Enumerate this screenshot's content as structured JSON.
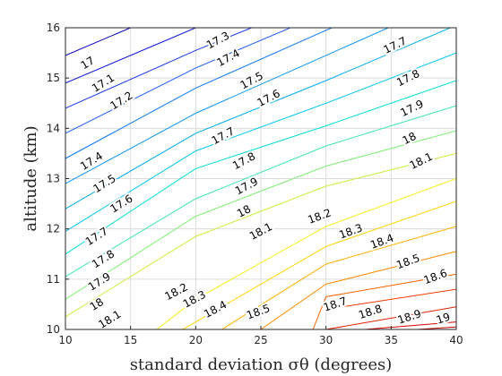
{
  "chart_data": {
    "type": "contour",
    "xlabel": "standard deviation σθ (degrees)",
    "ylabel": "altitude (km)",
    "xlim": [
      10,
      40
    ],
    "ylim": [
      10,
      16
    ],
    "x_ticks": [
      "10",
      "15",
      "20",
      "25",
      "30",
      "35",
      "40"
    ],
    "y_ticks": [
      "10",
      "11",
      "12",
      "13",
      "14",
      "15",
      "16"
    ],
    "grid": true,
    "colormap": "jet",
    "contour_levels": [
      {
        "level": "17",
        "color": "#0000b8",
        "points": [
          [
            10,
            15.45
          ],
          [
            20,
            16.55
          ]
        ]
      },
      {
        "level": "17.1",
        "color": "#0a14d6",
        "points": [
          [
            10,
            14.9
          ],
          [
            20,
            16.0
          ],
          [
            30,
            17.0
          ]
        ]
      },
      {
        "level": "17.2",
        "color": "#1a3aec",
        "points": [
          [
            10,
            14.4
          ],
          [
            20,
            15.55
          ],
          [
            30,
            16.6
          ]
        ]
      },
      {
        "level": "17.3",
        "color": "#1e5ef5",
        "points": [
          [
            10,
            13.9
          ],
          [
            20,
            15.2
          ],
          [
            30,
            16.3
          ]
        ]
      },
      {
        "level": "17.4",
        "color": "#0c78f0",
        "points": [
          [
            10,
            13.4
          ],
          [
            20,
            14.8
          ],
          [
            30,
            15.95
          ],
          [
            40,
            17.0
          ]
        ]
      },
      {
        "level": "17.5",
        "color": "#0c94ee",
        "points": [
          [
            10,
            12.9
          ],
          [
            20,
            14.3
          ],
          [
            30,
            15.45
          ],
          [
            40,
            16.6
          ]
        ]
      },
      {
        "level": "17.6",
        "color": "#00aaf0",
        "points": [
          [
            10,
            12.4
          ],
          [
            20,
            13.9
          ],
          [
            30,
            14.95
          ],
          [
            40,
            16.05
          ]
        ]
      },
      {
        "level": "17.7",
        "color": "#00c4f0",
        "points": [
          [
            10,
            11.95
          ],
          [
            20,
            13.55
          ],
          [
            30,
            14.5
          ],
          [
            40,
            15.5
          ]
        ]
      },
      {
        "level": "17.8",
        "color": "#00dcd8",
        "points": [
          [
            10,
            11.5
          ],
          [
            20,
            13.2
          ],
          [
            30,
            14.05
          ],
          [
            40,
            14.95
          ]
        ]
      },
      {
        "level": "17.9",
        "color": "#3ce6a8",
        "points": [
          [
            10,
            11.05
          ],
          [
            20,
            12.6
          ],
          [
            30,
            13.65
          ],
          [
            40,
            14.45
          ]
        ]
      },
      {
        "level": "18",
        "color": "#7ef072",
        "points": [
          [
            10,
            10.6
          ],
          [
            20,
            12.25
          ],
          [
            30,
            13.25
          ],
          [
            40,
            13.95
          ]
        ]
      },
      {
        "level": "18.1",
        "color": "#c8f03c",
        "points": [
          [
            10,
            10.25
          ],
          [
            20,
            11.85
          ],
          [
            30,
            12.85
          ],
          [
            40,
            13.5
          ]
        ]
      },
      {
        "level": "18.2",
        "color": "#f4f41c",
        "points": [
          [
            17,
            10.0
          ],
          [
            20,
            10.6
          ],
          [
            30,
            12.05
          ],
          [
            40,
            13.0
          ]
        ]
      },
      {
        "level": "18.3",
        "color": "#ffd400",
        "points": [
          [
            19,
            10.0
          ],
          [
            30,
            11.65
          ],
          [
            40,
            12.55
          ]
        ]
      },
      {
        "level": "18.4",
        "color": "#ffb000",
        "points": [
          [
            22,
            10.0
          ],
          [
            30,
            11.3
          ],
          [
            40,
            12.05
          ]
        ]
      },
      {
        "level": "18.5",
        "color": "#ff8c00",
        "points": [
          [
            25,
            10.0
          ],
          [
            30,
            10.9
          ],
          [
            40,
            11.55
          ]
        ]
      },
      {
        "level": "18.6",
        "color": "#f86200",
        "points": [
          [
            29,
            10.0
          ],
          [
            30,
            10.65
          ],
          [
            40,
            11.1
          ]
        ]
      },
      {
        "level": "18.7",
        "color": "#f23a00",
        "points": [
          [
            30,
            10.4
          ],
          [
            40,
            10.8
          ]
        ]
      },
      {
        "level": "18.8",
        "color": "#e41e00",
        "points": [
          [
            30,
            10.0
          ],
          [
            40,
            10.45
          ]
        ]
      },
      {
        "level": "18.9",
        "color": "#d40000",
        "points": [
          [
            33,
            10.0
          ],
          [
            40,
            10.15
          ]
        ]
      },
      {
        "level": "19",
        "color": "#c00000",
        "points": [
          [
            37,
            10.0
          ],
          [
            40,
            10.05
          ]
        ]
      }
    ],
    "contour_labels": [
      {
        "text": "17",
        "x": 11.7,
        "y": 15.3,
        "angle": -32
      },
      {
        "text": "17.1",
        "x": 12.9,
        "y": 14.9,
        "angle": -32
      },
      {
        "text": "17.2",
        "x": 14.3,
        "y": 14.55,
        "angle": -32
      },
      {
        "text": "17.3",
        "x": 21.7,
        "y": 15.75,
        "angle": -28
      },
      {
        "text": "17.4",
        "x": 22.5,
        "y": 15.4,
        "angle": -28
      },
      {
        "text": "17.5",
        "x": 24.3,
        "y": 14.95,
        "angle": -28
      },
      {
        "text": "17.6",
        "x": 25.6,
        "y": 14.6,
        "angle": -28
      },
      {
        "text": "17.7",
        "x": 35.3,
        "y": 15.65,
        "angle": -26
      },
      {
        "text": "17.8",
        "x": 36.3,
        "y": 15.0,
        "angle": -26
      },
      {
        "text": "17.9",
        "x": 36.6,
        "y": 14.4,
        "angle": -26
      },
      {
        "text": "18",
        "x": 36.4,
        "y": 13.8,
        "angle": -26
      },
      {
        "text": "18.1",
        "x": 37.3,
        "y": 13.35,
        "angle": -26
      },
      {
        "text": "17.7",
        "x": 22.1,
        "y": 13.85,
        "angle": -28
      },
      {
        "text": "17.8",
        "x": 23.7,
        "y": 13.35,
        "angle": -28
      },
      {
        "text": "17.9",
        "x": 23.9,
        "y": 12.85,
        "angle": -28
      },
      {
        "text": "18",
        "x": 23.7,
        "y": 12.35,
        "angle": -28
      },
      {
        "text": "18.1",
        "x": 25.0,
        "y": 11.95,
        "angle": -28
      },
      {
        "text": "17.4",
        "x": 12.0,
        "y": 13.35,
        "angle": -32
      },
      {
        "text": "17.5",
        "x": 13.0,
        "y": 12.9,
        "angle": -32
      },
      {
        "text": "17.6",
        "x": 14.3,
        "y": 12.5,
        "angle": -32
      },
      {
        "text": "17.7",
        "x": 12.4,
        "y": 11.85,
        "angle": -32
      },
      {
        "text": "17.8",
        "x": 12.9,
        "y": 11.4,
        "angle": -32
      },
      {
        "text": "17.9",
        "x": 12.6,
        "y": 10.95,
        "angle": -32
      },
      {
        "text": "18",
        "x": 12.4,
        "y": 10.5,
        "angle": -32
      },
      {
        "text": "18.1",
        "x": 13.4,
        "y": 10.2,
        "angle": -32
      },
      {
        "text": "18.2",
        "x": 29.5,
        "y": 12.25,
        "angle": -20
      },
      {
        "text": "18.3",
        "x": 31.9,
        "y": 11.95,
        "angle": -20
      },
      {
        "text": "18.4",
        "x": 34.3,
        "y": 11.75,
        "angle": -20
      },
      {
        "text": "18.5",
        "x": 36.3,
        "y": 11.35,
        "angle": -20
      },
      {
        "text": "18.6",
        "x": 38.4,
        "y": 11.05,
        "angle": -20
      },
      {
        "text": "18.2",
        "x": 18.5,
        "y": 10.75,
        "angle": -28
      },
      {
        "text": "18.3",
        "x": 19.9,
        "y": 10.6,
        "angle": -28
      },
      {
        "text": "18.4",
        "x": 21.5,
        "y": 10.4,
        "angle": -28
      },
      {
        "text": "18.5",
        "x": 24.8,
        "y": 10.35,
        "angle": -20
      },
      {
        "text": "18.7",
        "x": 30.7,
        "y": 10.5,
        "angle": -18
      },
      {
        "text": "18.8",
        "x": 33.4,
        "y": 10.35,
        "angle": -18
      },
      {
        "text": "18.9",
        "x": 36.4,
        "y": 10.25,
        "angle": -18
      },
      {
        "text": "19",
        "x": 39.0,
        "y": 10.22,
        "angle": -18
      }
    ]
  }
}
